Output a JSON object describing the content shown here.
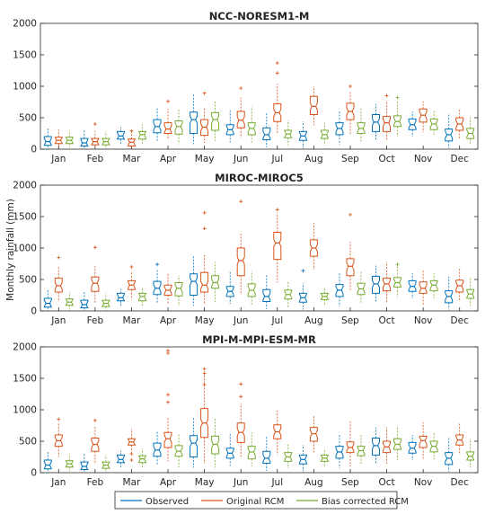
{
  "ylabel": "Monthly rainfall (mm)",
  "legend": {
    "observed": "Observed",
    "original": "Original RCM",
    "bias": "Bias corrected RCM"
  },
  "colors": {
    "observed": "#0072BD",
    "original": "#D95319",
    "bias": "#77AC30"
  },
  "chart_data": [
    {
      "type": "box",
      "title": "NCC-NORESM1-M",
      "categories": [
        "Jan",
        "Feb",
        "Mar",
        "Apr",
        "May",
        "Jun",
        "Jul",
        "Aug",
        "Sep",
        "Oct",
        "Nov",
        "Dec"
      ],
      "ylim": [
        0,
        2000
      ],
      "yticks": [
        0,
        500,
        1000,
        1500,
        2000
      ],
      "series": [
        {
          "name": "Observed",
          "median": [
            120,
            100,
            210,
            360,
            470,
            310,
            230,
            210,
            330,
            430,
            390,
            230
          ],
          "q1": [
            60,
            50,
            160,
            260,
            250,
            230,
            150,
            140,
            230,
            280,
            310,
            130
          ],
          "q3": [
            200,
            170,
            280,
            470,
            590,
            390,
            340,
            280,
            420,
            550,
            480,
            320
          ],
          "whisker_low": [
            0,
            0,
            80,
            120,
            80,
            110,
            30,
            20,
            70,
            130,
            200,
            20
          ],
          "whisker_high": [
            330,
            300,
            350,
            650,
            880,
            640,
            580,
            440,
            620,
            720,
            600,
            560
          ],
          "outliers": [
            [],
            [],
            [],
            [],
            [],
            [],
            [],
            [],
            [],
            [],
            [],
            []
          ]
        },
        {
          "name": "Original RCM",
          "median": [
            140,
            120,
            110,
            320,
            350,
            460,
            580,
            680,
            600,
            420,
            540,
            400
          ],
          "q1": [
            90,
            70,
            50,
            250,
            220,
            340,
            440,
            550,
            470,
            280,
            430,
            300
          ],
          "q3": [
            190,
            170,
            160,
            420,
            470,
            600,
            720,
            840,
            730,
            520,
            640,
            500
          ],
          "whisker_low": [
            20,
            10,
            0,
            150,
            100,
            180,
            240,
            380,
            240,
            150,
            270,
            150
          ],
          "whisker_high": [
            340,
            290,
            300,
            640,
            660,
            820,
            1040,
            1000,
            920,
            760,
            760,
            640
          ],
          "outliers": [
            [],
            [
              400
            ],
            [
              290
            ],
            [
              760
            ],
            [
              890
            ],
            [
              970
            ],
            [
              1370,
              1210
            ],
            [],
            [
              1000
            ],
            [
              850
            ],
            [],
            []
          ]
        },
        {
          "name": "Bias corrected RCM",
          "median": [
            140,
            120,
            230,
            360,
            470,
            330,
            240,
            230,
            330,
            440,
            400,
            250
          ],
          "q1": [
            90,
            70,
            160,
            240,
            300,
            230,
            180,
            170,
            250,
            360,
            310,
            170
          ],
          "q3": [
            190,
            170,
            280,
            450,
            580,
            420,
            300,
            300,
            420,
            530,
            480,
            330
          ],
          "whisker_low": [
            20,
            10,
            80,
            80,
            130,
            100,
            60,
            60,
            100,
            200,
            210,
            80
          ],
          "whisker_high": [
            300,
            280,
            400,
            650,
            760,
            680,
            460,
            420,
            650,
            770,
            620,
            520
          ],
          "outliers": [
            [],
            [],
            [],
            [],
            [],
            [],
            [],
            [],
            [],
            [
              820
            ],
            [],
            []
          ]
        }
      ]
    },
    {
      "type": "box",
      "title": "MIROC-MIROC5",
      "categories": [
        "Jan",
        "Feb",
        "Mar",
        "Apr",
        "May",
        "Jun",
        "Jul",
        "Aug",
        "Sep",
        "Oct",
        "Nov",
        "Dec"
      ],
      "ylim": [
        0,
        2000
      ],
      "yticks": [
        0,
        500,
        1000,
        1500,
        2000
      ],
      "series": [
        {
          "name": "Observed",
          "median": [
            120,
            100,
            210,
            360,
            470,
            310,
            230,
            210,
            330,
            430,
            390,
            230
          ],
          "q1": [
            60,
            50,
            160,
            260,
            250,
            230,
            150,
            140,
            230,
            280,
            310,
            130
          ],
          "q3": [
            200,
            170,
            280,
            470,
            590,
            390,
            340,
            280,
            420,
            550,
            480,
            320
          ],
          "whisker_low": [
            0,
            0,
            80,
            120,
            80,
            110,
            30,
            20,
            70,
            130,
            200,
            20
          ],
          "whisker_high": [
            330,
            300,
            350,
            650,
            880,
            640,
            580,
            440,
            620,
            720,
            600,
            560
          ],
          "outliers": [
            [],
            [],
            [],
            [
              740
            ],
            [],
            [],
            [],
            [
              640
            ],
            [],
            [],
            [],
            []
          ]
        },
        {
          "name": "Original RCM",
          "median": [
            400,
            440,
            410,
            330,
            410,
            800,
            1080,
            1000,
            710,
            430,
            360,
            400
          ],
          "q1": [
            300,
            310,
            340,
            250,
            300,
            560,
            820,
            870,
            560,
            320,
            280,
            300
          ],
          "q3": [
            520,
            540,
            480,
            410,
            610,
            1000,
            1250,
            1130,
            830,
            520,
            460,
            490
          ],
          "whisker_low": [
            150,
            120,
            180,
            110,
            100,
            280,
            450,
            660,
            310,
            120,
            90,
            150
          ],
          "whisker_high": [
            720,
            720,
            620,
            600,
            900,
            1250,
            1560,
            1400,
            1100,
            780,
            640,
            680
          ],
          "outliers": [
            [
              850
            ],
            [
              1010
            ],
            [
              700
            ],
            [],
            [
              1560,
              1310
            ],
            [
              1740
            ],
            [
              1610
            ],
            [],
            [
              1530
            ],
            [],
            [],
            []
          ]
        },
        {
          "name": "Bias corrected RCM",
          "median": [
            140,
            120,
            230,
            360,
            450,
            330,
            260,
            230,
            350,
            450,
            410,
            270
          ],
          "q1": [
            90,
            70,
            160,
            240,
            360,
            230,
            190,
            180,
            260,
            380,
            320,
            200
          ],
          "q3": [
            190,
            170,
            280,
            450,
            560,
            430,
            330,
            280,
            440,
            530,
            480,
            340
          ],
          "whisker_low": [
            20,
            10,
            80,
            80,
            140,
            100,
            60,
            90,
            120,
            220,
            200,
            80
          ],
          "whisker_high": [
            300,
            280,
            380,
            560,
            780,
            640,
            470,
            360,
            640,
            720,
            600,
            540
          ],
          "outliers": [
            [],
            [],
            [],
            [],
            [],
            [],
            [],
            [],
            [],
            [
              740
            ],
            [],
            []
          ]
        }
      ]
    },
    {
      "type": "box",
      "title": "MPI-M-MPI-ESM-MR",
      "categories": [
        "Jan",
        "Feb",
        "Mar",
        "Apr",
        "May",
        "Jun",
        "Jul",
        "Aug",
        "Sep",
        "Oct",
        "Nov",
        "Dec"
      ],
      "ylim": [
        0,
        2000
      ],
      "yticks": [
        0,
        500,
        1000,
        1500,
        2000
      ],
      "series": [
        {
          "name": "Observed",
          "median": [
            120,
            100,
            210,
            360,
            470,
            310,
            230,
            210,
            330,
            430,
            390,
            230
          ],
          "q1": [
            60,
            50,
            160,
            260,
            250,
            230,
            150,
            140,
            230,
            280,
            310,
            130
          ],
          "q3": [
            200,
            170,
            280,
            470,
            590,
            390,
            340,
            280,
            420,
            550,
            480,
            320
          ],
          "whisker_low": [
            0,
            0,
            80,
            120,
            80,
            110,
            30,
            20,
            70,
            130,
            200,
            20
          ],
          "whisker_high": [
            330,
            300,
            350,
            650,
            880,
            640,
            580,
            440,
            620,
            720,
            600,
            560
          ],
          "outliers": [
            [],
            [],
            [],
            [],
            [],
            [],
            [],
            [],
            [],
            [],
            [],
            []
          ]
        },
        {
          "name": "Original RCM",
          "median": [
            510,
            450,
            490,
            540,
            790,
            640,
            650,
            620,
            400,
            410,
            510,
            520
          ],
          "q1": [
            420,
            340,
            440,
            400,
            560,
            480,
            540,
            500,
            320,
            320,
            400,
            440
          ],
          "q3": [
            600,
            550,
            540,
            640,
            1020,
            790,
            760,
            720,
            490,
            500,
            580,
            600
          ],
          "whisker_low": [
            250,
            140,
            330,
            180,
            150,
            230,
            280,
            300,
            100,
            140,
            210,
            300
          ],
          "whisker_high": [
            800,
            740,
            700,
            890,
            1600,
            1100,
            1010,
            900,
            820,
            720,
            800,
            780
          ],
          "outliers": [
            [
              850
            ],
            [
              830
            ],
            [
              300,
              200
            ],
            [
              1940,
              1900,
              1240,
              1120
            ],
            [
              1650,
              1580,
              1400
            ],
            [
              1410,
              1210
            ],
            [],
            [],
            [],
            [],
            [],
            []
          ]
        },
        {
          "name": "Bias corrected RCM",
          "median": [
            140,
            120,
            220,
            340,
            450,
            330,
            250,
            230,
            350,
            450,
            420,
            260
          ],
          "q1": [
            90,
            70,
            160,
            260,
            300,
            220,
            180,
            180,
            270,
            370,
            330,
            200
          ],
          "q3": [
            190,
            170,
            270,
            430,
            580,
            420,
            320,
            280,
            420,
            540,
            500,
            330
          ],
          "whisker_low": [
            20,
            10,
            80,
            80,
            80,
            100,
            70,
            80,
            130,
            200,
            210,
            80
          ],
          "whisker_high": [
            300,
            280,
            380,
            620,
            860,
            640,
            460,
            380,
            600,
            720,
            640,
            540
          ],
          "outliers": [
            [],
            [],
            [],
            [],
            [],
            [],
            [],
            [],
            [],
            [],
            [],
            []
          ]
        }
      ]
    }
  ]
}
